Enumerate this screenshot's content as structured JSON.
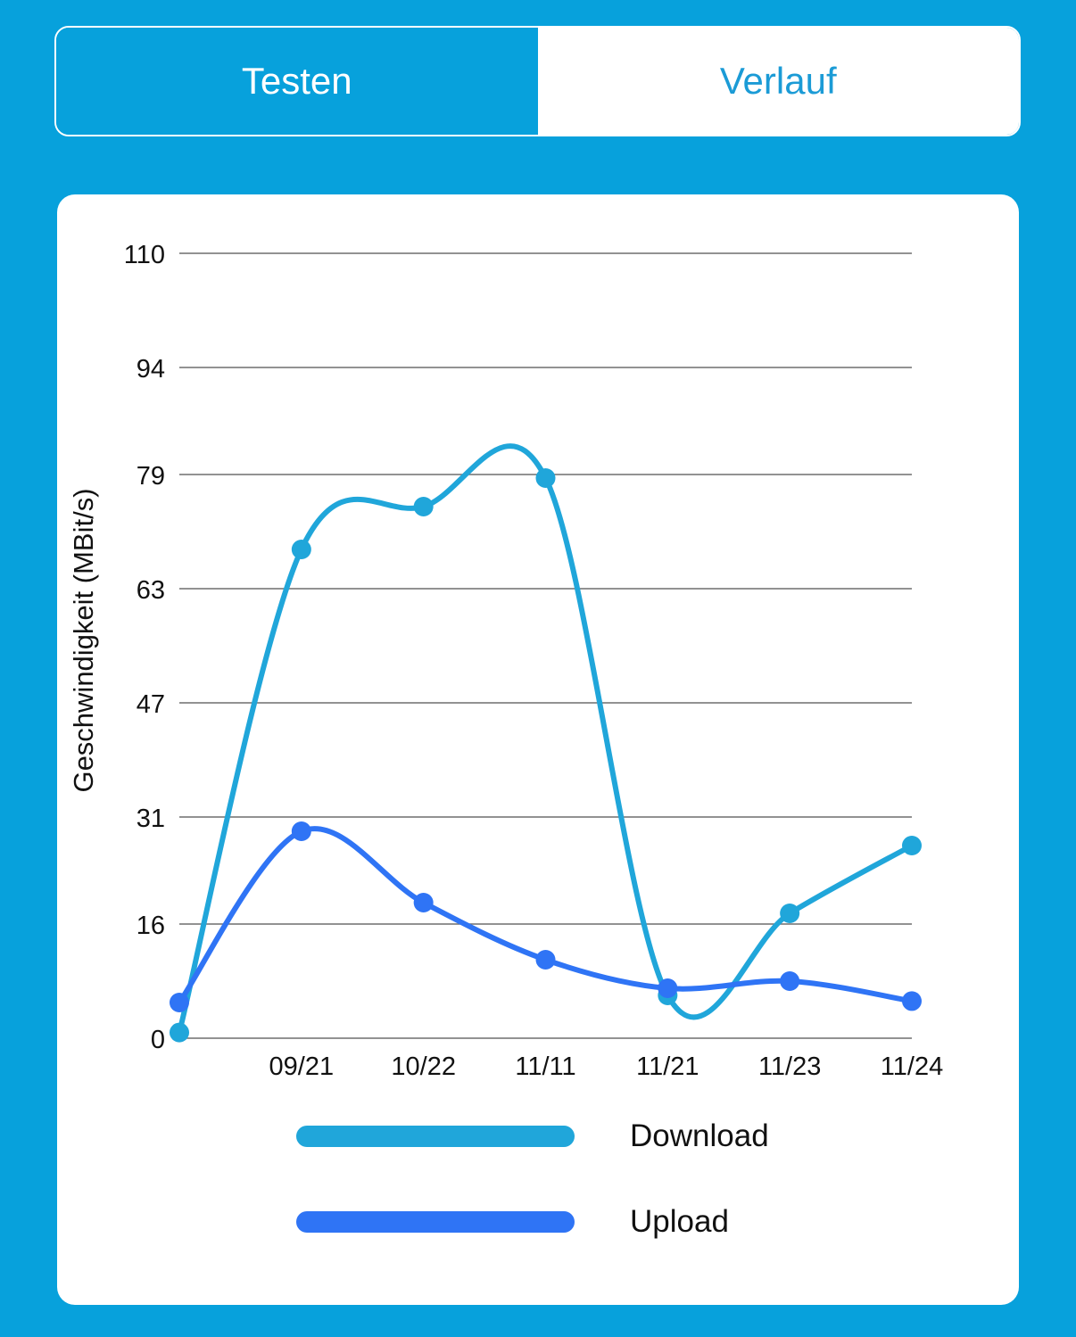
{
  "tabs": [
    {
      "label": "Testen",
      "active": true
    },
    {
      "label": "Verlauf",
      "active": false
    }
  ],
  "colors": {
    "background": "#07a1dc",
    "download": "#20a6da",
    "upload": "#2f74f5"
  },
  "chart_data": {
    "type": "line",
    "title": "",
    "xlabel": "",
    "ylabel": "Geschwindigkeit (MBit/s)",
    "ylim": [
      0,
      110
    ],
    "y_ticks": [
      "110",
      "94",
      "79",
      "63",
      "47",
      "31",
      "16",
      "0"
    ],
    "x_labels": [
      "",
      "09/21",
      "10/22",
      "11/11",
      "11/21",
      "11/23",
      "11/24"
    ],
    "smooth": true,
    "grid": true,
    "legend_position": "bottom",
    "series": [
      {
        "name": "Download",
        "color": "#20a6da",
        "values": [
          0.8,
          68.5,
          74.5,
          78.5,
          6,
          17.5,
          27
        ]
      },
      {
        "name": "Upload",
        "color": "#2f74f5",
        "values": [
          5,
          29,
          19,
          11,
          7,
          8,
          5.2
        ]
      }
    ]
  }
}
